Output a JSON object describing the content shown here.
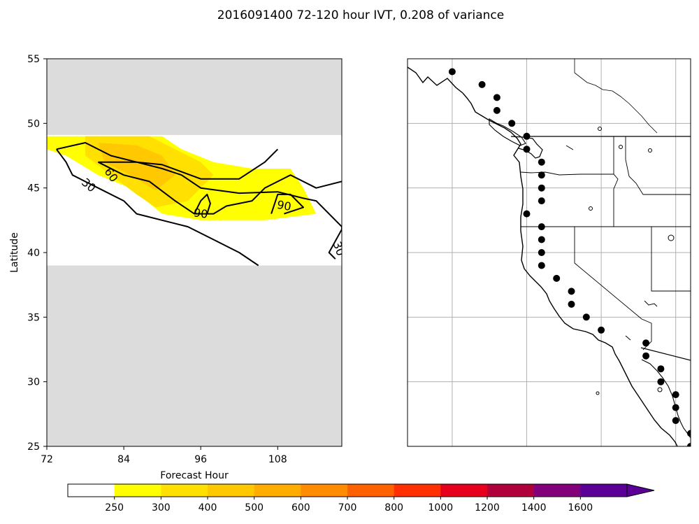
{
  "chart_data": [
    {
      "type": "heatmap",
      "title": "2016091400 72-120 hour IVT, 0.208 of variance",
      "xlabel": "Forecast Hour",
      "ylabel": "Latitude",
      "xlim": [
        72,
        118
      ],
      "ylim": [
        25,
        55
      ],
      "xticks": [
        "72",
        "84",
        "96",
        "108"
      ],
      "yticks": [
        "25",
        "30",
        "35",
        "40",
        "45",
        "50",
        "55"
      ],
      "masked_lat_ranges": [
        [
          25,
          39
        ],
        [
          49.1,
          55
        ]
      ],
      "filled_regions": [
        {
          "level": "250-300",
          "color": "#ffff00",
          "points": [
            [
              72,
              49
            ],
            [
              78,
              49
            ],
            [
              90,
              49
            ],
            [
              93,
              48
            ],
            [
              98,
              47
            ],
            [
              104,
              46.5
            ],
            [
              110,
              46.5
            ],
            [
              112,
              45
            ],
            [
              114,
              43
            ],
            [
              106,
              42.5
            ],
            [
              96,
              42.5
            ],
            [
              90,
              43
            ],
            [
              85,
              45
            ],
            [
              80,
              46
            ],
            [
              75,
              47.5
            ],
            [
              72,
              48
            ]
          ]
        },
        {
          "level": "300-400",
          "color": "#ffe000",
          "points": [
            [
              78,
              49
            ],
            [
              88,
              49
            ],
            [
              92,
              48
            ],
            [
              96,
              47
            ],
            [
              98,
              46
            ],
            [
              94,
              44
            ],
            [
              89,
              43.5
            ],
            [
              86,
              44.5
            ],
            [
              82,
              46
            ],
            [
              78,
              47.5
            ]
          ]
        },
        {
          "level": "400-500",
          "color": "#ffc800",
          "points": [
            [
              80,
              48.5
            ],
            [
              86,
              48.3
            ],
            [
              90,
              47.5
            ],
            [
              92,
              46
            ],
            [
              89,
              44.8
            ],
            [
              85,
              46
            ],
            [
              81,
              47
            ]
          ]
        }
      ],
      "contours": [
        {
          "level": 30,
          "label": "30",
          "points": [
            [
              73.5,
              48
            ],
            [
              78,
              48.5
            ],
            [
              82,
              47.5
            ],
            [
              86,
              47
            ],
            [
              90,
              46.5
            ],
            [
              93,
              46
            ],
            [
              96,
              45
            ],
            [
              102,
              44.6
            ],
            [
              108,
              44.7
            ],
            [
              112,
              44.2
            ],
            [
              114,
              44
            ],
            [
              118,
              42
            ],
            [
              118,
              41.8
            ]
          ]
        },
        {
          "level": 30,
          "label": "30",
          "points": [
            [
              73.5,
              48
            ],
            [
              75,
              47
            ],
            [
              76,
              46
            ],
            [
              80,
              45
            ],
            [
              84,
              44
            ],
            [
              86,
              43
            ],
            [
              94,
              42
            ],
            [
              98,
              41
            ],
            [
              102,
              40
            ],
            [
              105,
              39
            ]
          ]
        },
        {
          "level": 30,
          "label": "30",
          "points": [
            [
              118,
              41.8
            ],
            [
              116,
              40
            ],
            [
              117,
              39.5
            ]
          ]
        },
        {
          "level": 60,
          "label": "60",
          "points": [
            [
              80,
              47
            ],
            [
              84,
              46
            ],
            [
              88,
              45.5
            ],
            [
              92,
              44
            ],
            [
              95,
              43
            ],
            [
              98,
              43
            ],
            [
              100,
              43.6
            ],
            [
              104,
              44
            ],
            [
              106,
              45
            ],
            [
              110,
              46
            ],
            [
              114,
              45
            ],
            [
              118,
              45.5
            ]
          ]
        },
        {
          "level": 60,
          "label": "60",
          "points": [
            [
              80,
              47
            ],
            [
              86,
              47
            ],
            [
              90,
              46.8
            ],
            [
              96,
              45.7
            ],
            [
              102,
              45.7
            ],
            [
              106,
              47
            ],
            [
              108,
              48
            ]
          ]
        },
        {
          "level": 90,
          "label": "90",
          "points": [
            [
              95,
              43
            ],
            [
              96,
              44
            ],
            [
              97,
              44.5
            ],
            [
              97.5,
              43.8
            ],
            [
              97,
              43
            ]
          ]
        },
        {
          "level": 90,
          "label": "90",
          "points": [
            [
              107,
              43
            ],
            [
              108,
              44.5
            ],
            [
              110,
              44.5
            ],
            [
              112,
              43.5
            ],
            [
              109,
              43
            ]
          ]
        }
      ],
      "contour_labels": [
        "30",
        "60",
        "90",
        "90",
        "30"
      ]
    },
    {
      "type": "scatter",
      "title": "",
      "xlim": [
        -138,
        -119
      ],
      "ylim": [
        25,
        55
      ],
      "grid": true,
      "grid_lon": [
        -135,
        -130,
        -125,
        -120
      ],
      "grid_lat": [
        30,
        35,
        40,
        45,
        50
      ],
      "points": [
        [
          -135,
          54
        ],
        [
          -133,
          53
        ],
        [
          -132,
          52
        ],
        [
          -132,
          51
        ],
        [
          -131,
          50
        ],
        [
          -130,
          49
        ],
        [
          -130,
          48
        ],
        [
          -129,
          47
        ],
        [
          -129,
          46
        ],
        [
          -129,
          45
        ],
        [
          -129,
          44
        ],
        [
          -130,
          43
        ],
        [
          -129,
          42
        ],
        [
          -129,
          41
        ],
        [
          -129,
          40
        ],
        [
          -129,
          39
        ],
        [
          -128,
          38
        ],
        [
          -127,
          37
        ],
        [
          -127,
          36
        ],
        [
          -126,
          35
        ],
        [
          -125,
          34
        ],
        [
          -122,
          33
        ],
        [
          -122,
          32
        ],
        [
          -121,
          31
        ],
        [
          -121,
          30
        ],
        [
          -120,
          29
        ],
        [
          -120,
          28
        ],
        [
          -120,
          27
        ],
        [
          -119,
          26
        ],
        [
          -119,
          25
        ]
      ]
    }
  ],
  "colorbar": {
    "levels": [
      "250",
      "300",
      "400",
      "500",
      "600",
      "700",
      "800",
      "1000",
      "1200",
      "1400",
      "1600"
    ],
    "colors": [
      "#ffffff",
      "#ffff00",
      "#ffe000",
      "#ffc800",
      "#ffad00",
      "#ff8c00",
      "#ff6100",
      "#ff2f00",
      "#e6001e",
      "#b0003c",
      "#82007a",
      "#5a0096"
    ],
    "extend": "max"
  }
}
